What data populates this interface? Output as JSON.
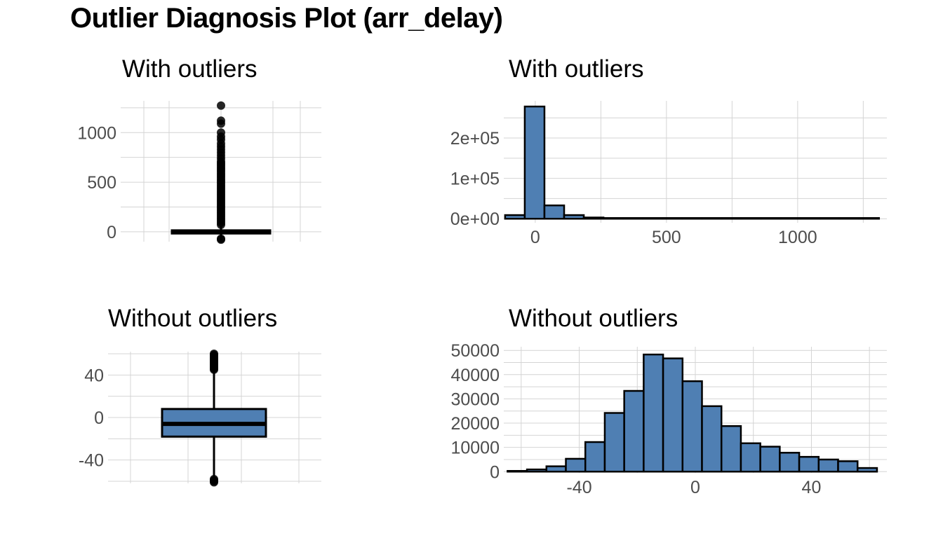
{
  "title": "Outlier Diagnosis Plot (arr_delay)",
  "colors": {
    "fill": "#4f7fb3",
    "outline": "#000000",
    "grid": "#d4d4d4",
    "tick_text": "#4d4d4d"
  },
  "chart_data": [
    {
      "panel": "top-left",
      "type": "box",
      "title": "With outliers",
      "ylim": [
        -100,
        1320
      ],
      "yticks": [
        0,
        500,
        1000
      ],
      "grid": true,
      "box": {
        "q1": -17,
        "median": -5,
        "q3": 14,
        "whisker_low": -86,
        "whisker_high": 60
      },
      "outliers": [
        -80,
        -70,
        70,
        90,
        110,
        130,
        150,
        170,
        190,
        210,
        230,
        250,
        270,
        290,
        310,
        330,
        350,
        370,
        390,
        410,
        430,
        450,
        470,
        490,
        510,
        530,
        550,
        570,
        590,
        610,
        630,
        650,
        670,
        690,
        710,
        740,
        770,
        800,
        830,
        860,
        890,
        930,
        960,
        1000,
        1090,
        1120,
        1272
      ]
    },
    {
      "panel": "top-right",
      "type": "bar",
      "title": "With outliers",
      "xlim": [
        -120,
        1340
      ],
      "ylim": [
        -10000,
        292000
      ],
      "xticks": [
        0,
        500,
        1000
      ],
      "yticks": [
        0,
        100000,
        200000
      ],
      "ytick_labels": [
        "0e+00",
        "1e+05",
        "2e+05"
      ],
      "grid": true,
      "bin_width": 75,
      "bin_starts": [
        -115,
        -40,
        35,
        110,
        185,
        260,
        335,
        410,
        485,
        560,
        635,
        710,
        785,
        860,
        935,
        1010,
        1085,
        1160,
        1235
      ],
      "values": [
        9000,
        278000,
        33000,
        9000,
        3000,
        1200,
        600,
        400,
        250,
        150,
        100,
        80,
        60,
        40,
        30,
        20,
        15,
        10,
        5
      ]
    },
    {
      "panel": "bottom-left",
      "type": "box",
      "title": "Without outliers",
      "ylim": [
        -62,
        62
      ],
      "yticks": [
        -40,
        0,
        40
      ],
      "grid": true,
      "box": {
        "q1": -18,
        "median": -6,
        "q3": 8,
        "whisker_low": -57,
        "whisker_high": 44
      },
      "outliers": [
        -61,
        -60,
        -59,
        -58,
        45,
        46,
        47,
        48,
        49,
        50,
        51,
        52,
        53,
        54,
        55,
        56,
        57,
        58,
        59,
        60
      ]
    },
    {
      "panel": "bottom-right",
      "type": "bar",
      "title": "Without outliers",
      "xlim": [
        -66,
        66
      ],
      "ylim": [
        -500,
        51500
      ],
      "xticks": [
        -40,
        0,
        40
      ],
      "yticks": [
        0,
        10000,
        20000,
        30000,
        40000,
        50000
      ],
      "ytick_labels": [
        "0",
        "10000",
        "20000",
        "30000",
        "40000",
        "50000"
      ],
      "grid": true,
      "bin_width": 6.7,
      "bin_starts": [
        -64.7,
        -58,
        -51.3,
        -44.6,
        -37.9,
        -31.2,
        -24.5,
        -17.8,
        -11.1,
        -4.4,
        2.3,
        9,
        15.7,
        22.4,
        29.1,
        35.8,
        42.5,
        49.2,
        55.9
      ],
      "values": [
        300,
        900,
        2200,
        5300,
        12200,
        24200,
        33300,
        48300,
        46700,
        37300,
        27000,
        18800,
        11700,
        10300,
        7800,
        6100,
        5000,
        4300,
        1500
      ]
    }
  ]
}
